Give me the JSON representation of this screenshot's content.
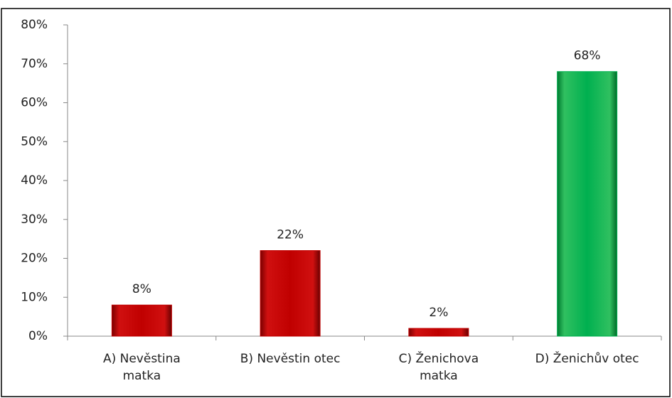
{
  "chart_data": {
    "type": "bar",
    "categories": [
      "A) Nevěstina matka",
      "B) Nevěstin otec",
      "C) Ženichova matka",
      "D) Ženichův otec"
    ],
    "values": [
      8,
      22,
      2,
      68
    ],
    "value_labels": [
      "8%",
      "22%",
      "2%",
      "68%"
    ],
    "colors": [
      "#c00000",
      "#c00000",
      "#c00000",
      "#00b050"
    ],
    "ylim": [
      0,
      80
    ],
    "yticks": [
      {
        "value": 0,
        "label": "0%"
      },
      {
        "value": 10,
        "label": "10%"
      },
      {
        "value": 20,
        "label": "20%"
      },
      {
        "value": 30,
        "label": "30%"
      },
      {
        "value": 40,
        "label": "40%"
      },
      {
        "value": 50,
        "label": "50%"
      },
      {
        "value": 60,
        "label": "60%"
      },
      {
        "value": 70,
        "label": "70%"
      },
      {
        "value": 80,
        "label": "80%"
      }
    ],
    "grid": false
  }
}
